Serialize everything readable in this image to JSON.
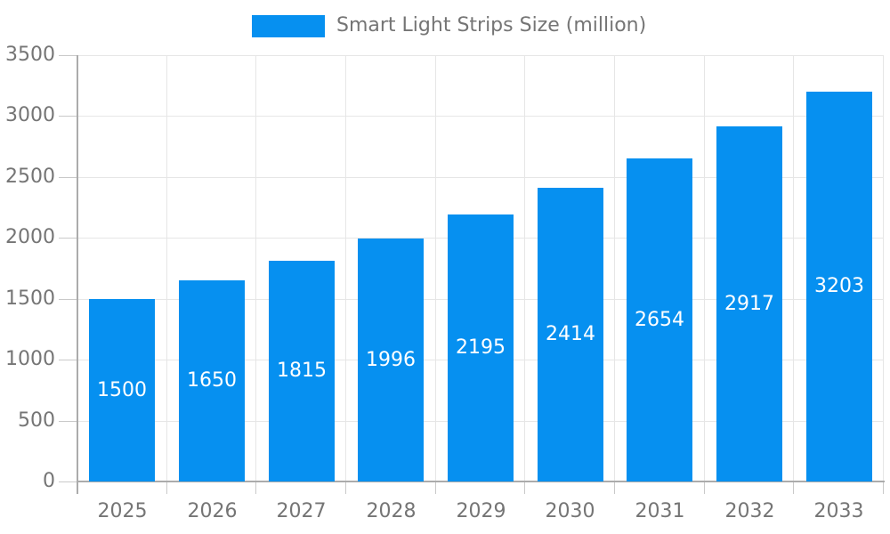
{
  "chart_data": {
    "type": "bar",
    "title": "Smart Light Strips Size (million)",
    "legend_position": "top-center",
    "categories": [
      "2025",
      "2026",
      "2027",
      "2028",
      "2029",
      "2030",
      "2031",
      "2032",
      "2033"
    ],
    "values": [
      1500,
      1650,
      1815,
      1996,
      2195,
      2414,
      2654,
      2917,
      3203
    ],
    "xlabel": "",
    "ylabel": "",
    "ylim": [
      0,
      3500
    ],
    "ytick_interval": 500,
    "yticks": [
      0,
      500,
      1000,
      1500,
      2000,
      2500,
      3000,
      3500
    ],
    "grid": true,
    "bar_value_labels_visible": true,
    "colors": {
      "bar": "#0690f0",
      "bar_label": "#ffffff",
      "axis_text": "#757575",
      "grid_line": "#e6e6e6",
      "axis_line": "#ababab",
      "tick_line": "#c9c9c9",
      "background": "#ffffff"
    }
  }
}
